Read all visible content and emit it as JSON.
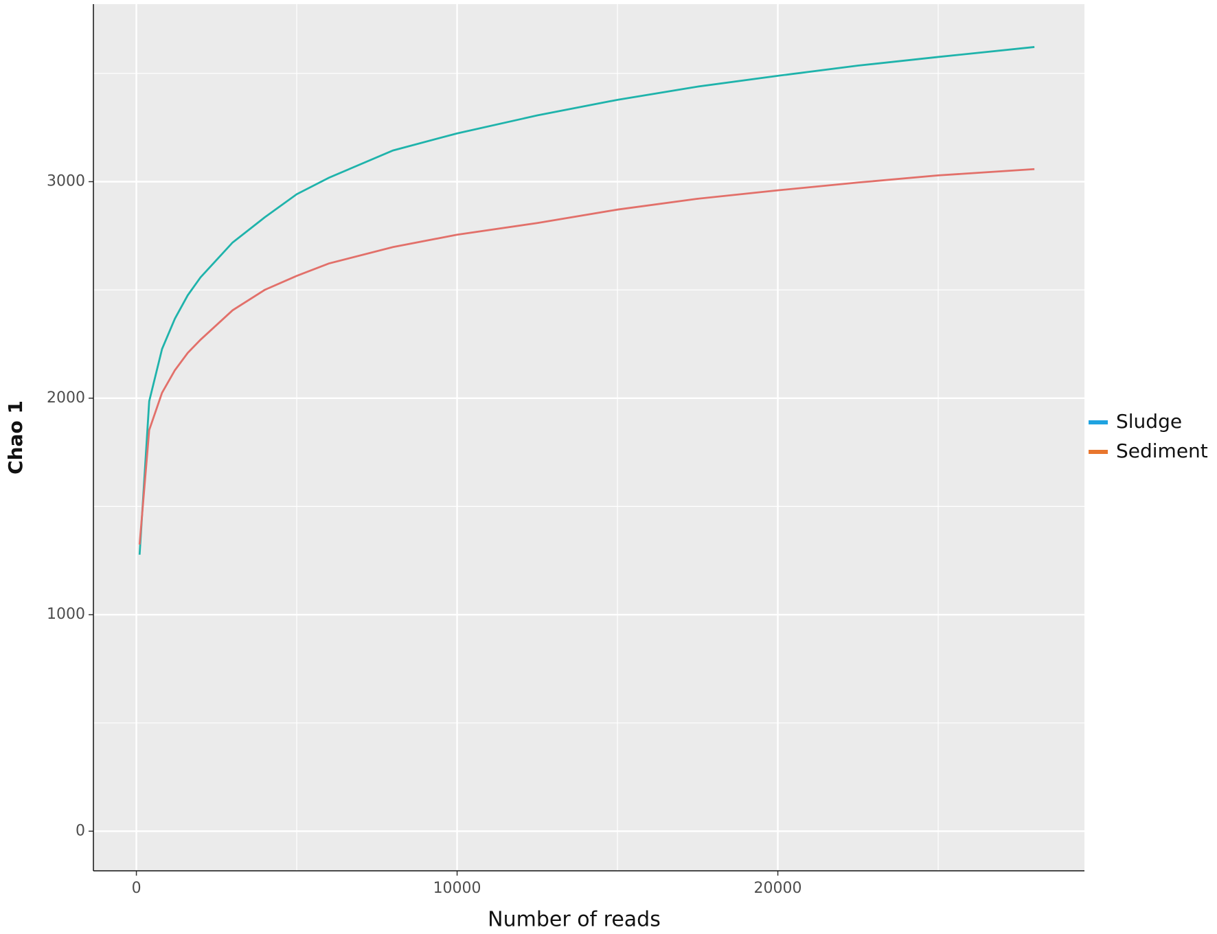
{
  "chart_data": {
    "type": "line",
    "x_label": "Number of reads",
    "y_label": "Chao 1",
    "xlim": [
      -1340,
      29560
    ],
    "ylim": [
      -183,
      3820
    ],
    "xticks": [
      0,
      10000,
      20000
    ],
    "yticks": [
      0,
      1000,
      2000,
      3000
    ],
    "xminor": [
      5000,
      15000,
      25000
    ],
    "yminor": [
      500,
      1500,
      2500,
      3500
    ],
    "grid": true,
    "legend_position": "right",
    "x": [
      100,
      400,
      800,
      1200,
      1600,
      2000,
      3000,
      4000,
      5000,
      6000,
      8000,
      10000,
      12500,
      15000,
      17500,
      20000,
      22500,
      25000,
      28000
    ],
    "series": [
      {
        "name": "Sludge",
        "color": "#1fb3ab",
        "legend_color": "#1fa3e0",
        "values": [
          1277,
          1986,
          2227,
          2367,
          2475,
          2558,
          2719,
          2835,
          2942,
          3018,
          3144,
          3223,
          3306,
          3378,
          3439,
          3489,
          3536,
          3576,
          3622
        ]
      },
      {
        "name": "Sediment",
        "color": "#e2706a",
        "legend_color": "#e8762d",
        "values": [
          1324,
          1853,
          2025,
          2129,
          2209,
          2270,
          2406,
          2500,
          2565,
          2622,
          2698,
          2755,
          2809,
          2871,
          2921,
          2960,
          2996,
          3029,
          3058
        ]
      }
    ]
  }
}
